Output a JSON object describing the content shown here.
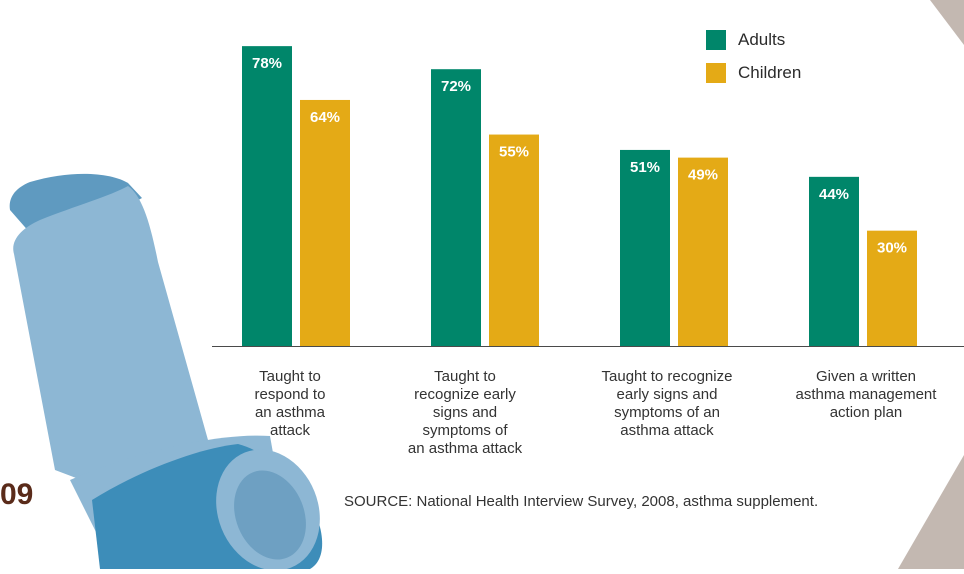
{
  "page_number": "09",
  "source": "SOURCE: National Health Interview Survey, 2008, asthma supplement.",
  "colors": {
    "adults": "#00866a",
    "children": "#e4aa16",
    "corner": "#c3b8b1"
  },
  "chart_data": {
    "type": "bar",
    "categories": [
      "Taught to respond to an asthma attack",
      "Taught to recognize early signs and symptoms of an asthma attack",
      "Taught to recognize early signs and symptoms of an asthma attack",
      "Given a written asthma management action plan"
    ],
    "category_lines": [
      [
        "Taught to",
        "respond to",
        "an asthma",
        "attack"
      ],
      [
        "Taught to",
        "recognize early",
        "signs and",
        "symptoms of",
        "an asthma attack"
      ],
      [
        "Taught to recognize",
        "early signs and",
        "symptoms of an",
        "asthma attack"
      ],
      [
        "Given a written",
        "asthma management",
        "action plan"
      ]
    ],
    "series": [
      {
        "name": "Adults",
        "values": [
          78,
          72,
          51,
          44
        ],
        "labels": [
          "78%",
          "72%",
          "51%",
          "44%"
        ]
      },
      {
        "name": "Children",
        "values": [
          64,
          55,
          49,
          30
        ],
        "labels": [
          "64%",
          "55%",
          "49%",
          "30%"
        ]
      }
    ],
    "ylim": [
      0,
      100
    ],
    "legend_position": "top-right",
    "grid": false
  }
}
